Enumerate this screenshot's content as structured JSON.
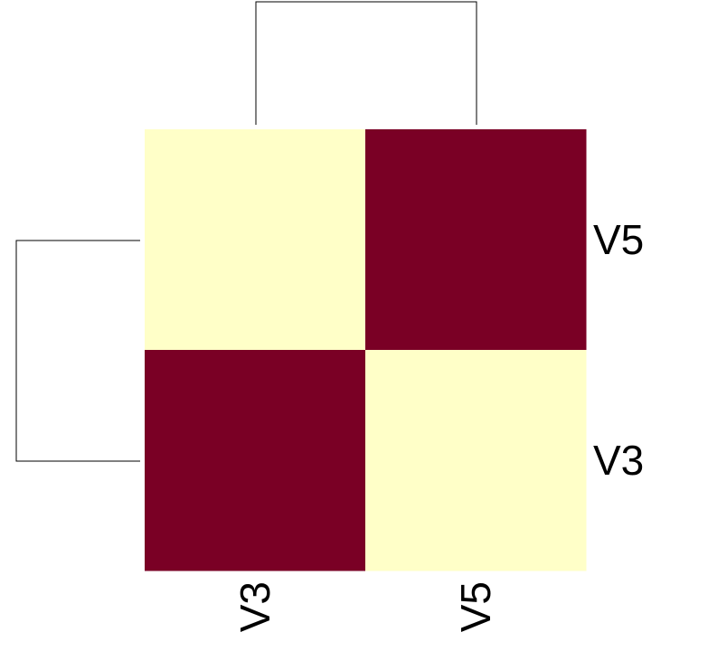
{
  "chart_data": {
    "type": "heatmap",
    "title": "",
    "xlabel": "",
    "ylabel": "",
    "columns": [
      "V3",
      "V5"
    ],
    "rows": [
      "V5",
      "V3"
    ],
    "values": [
      [
        0,
        1
      ],
      [
        1,
        0
      ]
    ],
    "color_low": "#FFFFC8",
    "color_high": "#7A0025",
    "row_dendrogram": true,
    "column_dendrogram": true,
    "row_labels_side": "right",
    "column_labels_side": "bottom",
    "column_labels_rotated": true
  }
}
